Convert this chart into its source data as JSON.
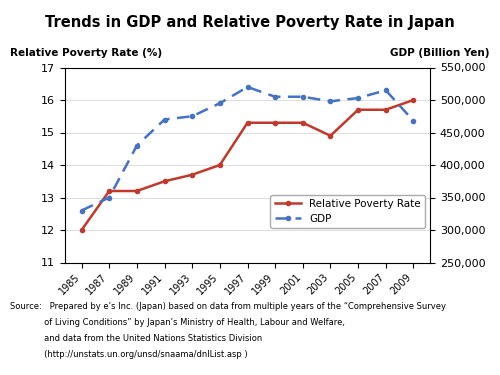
{
  "title": "Trends in GDP and Relative Poverty Rate in Japan",
  "years": [
    1985,
    1987,
    1989,
    1991,
    1993,
    1995,
    1997,
    1999,
    2001,
    2003,
    2005,
    2007,
    2009
  ],
  "poverty_rate": [
    12.0,
    13.2,
    13.2,
    13.5,
    13.7,
    14.0,
    15.3,
    15.3,
    15.3,
    14.9,
    15.7,
    15.7,
    16.0
  ],
  "gdp": [
    330000,
    350000,
    430000,
    470000,
    475000,
    495000,
    520000,
    505000,
    505000,
    498000,
    503000,
    515000,
    468000
  ],
  "poverty_color": "#c0392b",
  "gdp_color": "#4472c4",
  "ylim_left": [
    11,
    17
  ],
  "ylim_right": [
    250000,
    550000
  ],
  "yticks_left": [
    11,
    12,
    13,
    14,
    15,
    16,
    17
  ],
  "yticks_right": [
    250000,
    300000,
    350000,
    400000,
    450000,
    500000,
    550000
  ],
  "ylabel_left": "Relative Poverty Rate (%)",
  "ylabel_right": "GDP (Billion Yen)",
  "legend_poverty": "Relative Poverty Rate",
  "legend_gdp": "GDP",
  "source_line1": "Source:   Prepared by e’s Inc. (Japan) based on data from multiple years of the “Comprehensive Survey",
  "source_line2": "             of Living Conditions” by Japan’s Ministry of Health, Labour and Welfare,",
  "source_line3": "             and data from the United Nations Statistics Division",
  "source_line4": "             (http://unstats.un.org/unsd/snaama/dnlList.asp )"
}
